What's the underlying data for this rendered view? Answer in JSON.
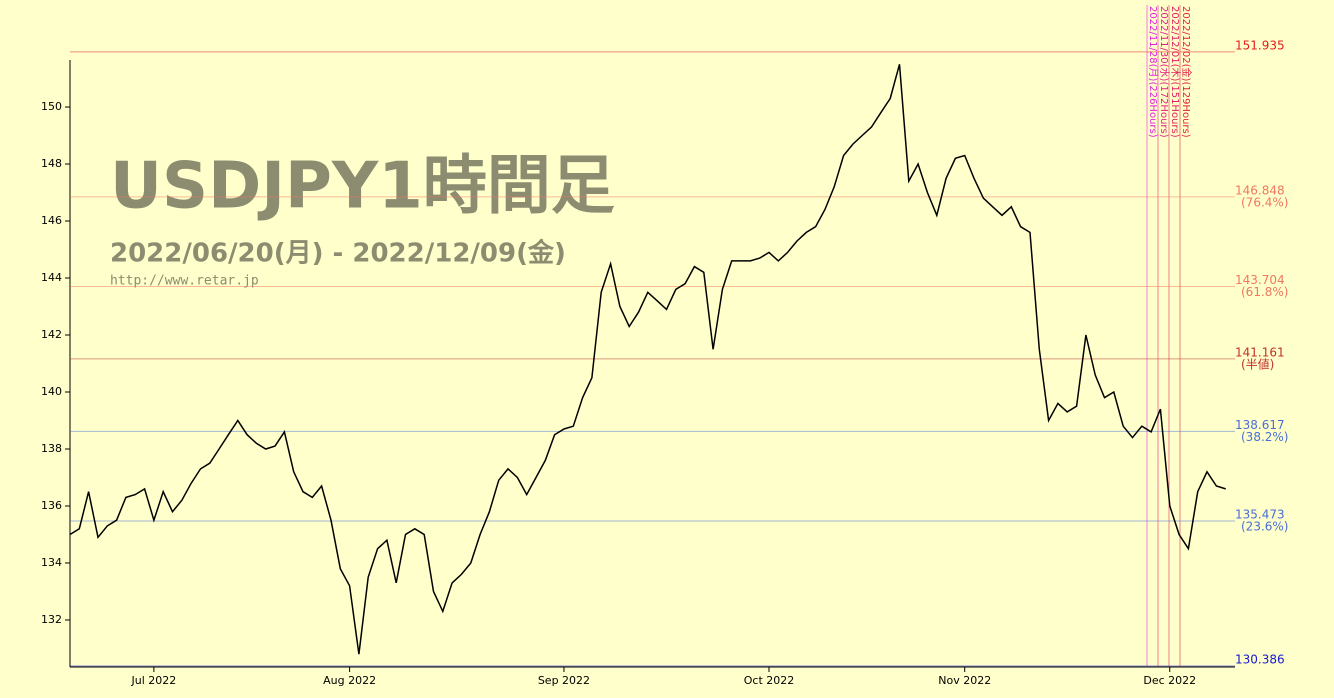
{
  "chart_data": {
    "type": "line",
    "title": "USDJPY1時間足",
    "subtitle": "2022/06/20(月) - 2022/12/09(金)",
    "source": "http://www.retar.jp",
    "color": "#000000",
    "categories": [
      null,
      null,
      null,
      null,
      null,
      null,
      null,
      null,
      null,
      "Jul 2022",
      null,
      null,
      null,
      null,
      null,
      null,
      null,
      null,
      null,
      null,
      null,
      null,
      null,
      null,
      null,
      null,
      null,
      null,
      null,
      null,
      "Aug 2022",
      null,
      null,
      null,
      null,
      null,
      null,
      null,
      null,
      null,
      null,
      null,
      null,
      null,
      null,
      null,
      null,
      null,
      null,
      null,
      null,
      null,
      null,
      "Sep 2022",
      null,
      null,
      null,
      null,
      null,
      null,
      null,
      null,
      null,
      null,
      null,
      null,
      null,
      null,
      null,
      null,
      null,
      null,
      null,
      null,
      null,
      "Oct 2022",
      null,
      null,
      null,
      null,
      null,
      null,
      null,
      null,
      null,
      null,
      null,
      null,
      null,
      null,
      null,
      null,
      null,
      null,
      null,
      null,
      "Nov 2022",
      null,
      null,
      null,
      null,
      null,
      null,
      null,
      null,
      null,
      null,
      null,
      null,
      null,
      null,
      null,
      null,
      null,
      null,
      null,
      null,
      null,
      "Dec 2022",
      null,
      null,
      null,
      null,
      null,
      null
    ],
    "values": [
      135.0,
      135.2,
      136.5,
      134.9,
      135.3,
      135.5,
      136.3,
      136.4,
      136.6,
      135.5,
      136.5,
      135.8,
      136.2,
      136.8,
      137.3,
      137.5,
      138.0,
      138.5,
      139.0,
      138.5,
      138.2,
      138.0,
      138.1,
      138.6,
      137.2,
      136.5,
      136.3,
      136.7,
      135.5,
      133.8,
      133.2,
      130.8,
      133.5,
      134.5,
      134.8,
      133.3,
      135.0,
      135.2,
      135.0,
      133.0,
      132.3,
      133.3,
      133.6,
      134.0,
      135.0,
      135.8,
      136.9,
      137.3,
      137.0,
      136.4,
      137.0,
      137.6,
      138.5,
      138.7,
      138.8,
      139.8,
      140.5,
      143.5,
      144.5,
      143.0,
      142.3,
      142.8,
      143.5,
      143.2,
      142.9,
      143.6,
      143.8,
      144.4,
      144.2,
      141.5,
      143.6,
      144.6,
      144.6,
      144.6,
      144.7,
      144.9,
      144.6,
      144.9,
      145.3,
      145.6,
      145.8,
      146.4,
      147.2,
      148.3,
      148.7,
      149.0,
      149.3,
      149.8,
      150.3,
      151.5,
      147.4,
      148.0,
      147.0,
      146.2,
      147.5,
      148.2,
      148.3,
      147.5,
      146.8,
      146.5,
      146.2,
      146.5,
      145.8,
      145.6,
      141.5,
      139.0,
      139.6,
      139.3,
      139.5,
      142.0,
      140.6,
      139.8,
      140.0,
      138.8,
      138.4,
      138.8,
      138.6,
      139.4,
      136.0,
      135.0,
      134.5,
      136.5,
      137.2,
      136.7,
      136.6
    ],
    "ylim": [
      130.35,
      151.65
    ],
    "yticks": [
      132,
      134,
      136,
      138,
      140,
      142,
      144,
      146,
      148,
      150
    ],
    "levels": [
      {
        "value": 151.935,
        "color": "#e02020"
      },
      {
        "value": 146.848,
        "note": "(76.4%)",
        "color": "#f07860"
      },
      {
        "value": 143.704,
        "note": "(61.8%)",
        "color": "#f07860"
      },
      {
        "value": 141.161,
        "note": "(半値)",
        "color": "#c03030"
      },
      {
        "value": 138.617,
        "note": "(38.2%)",
        "color": "#4a6fd8"
      },
      {
        "value": 135.473,
        "note": "(23.6%)",
        "color": "#4a6fd8"
      },
      {
        "value": 130.386,
        "color": "#1a1ad0"
      }
    ],
    "markers": [
      {
        "label": "2022/11/28(月)(226Hours)",
        "color": "#e020e0"
      },
      {
        "label": "2022/11/30(水)(172Hours)",
        "color": "#e02080"
      },
      {
        "label": "2022/12/01(木)(151Hours)",
        "color": "#e02060"
      },
      {
        "label": "2022/12/02(金)(129Hours)",
        "color": "#e02040"
      }
    ]
  }
}
